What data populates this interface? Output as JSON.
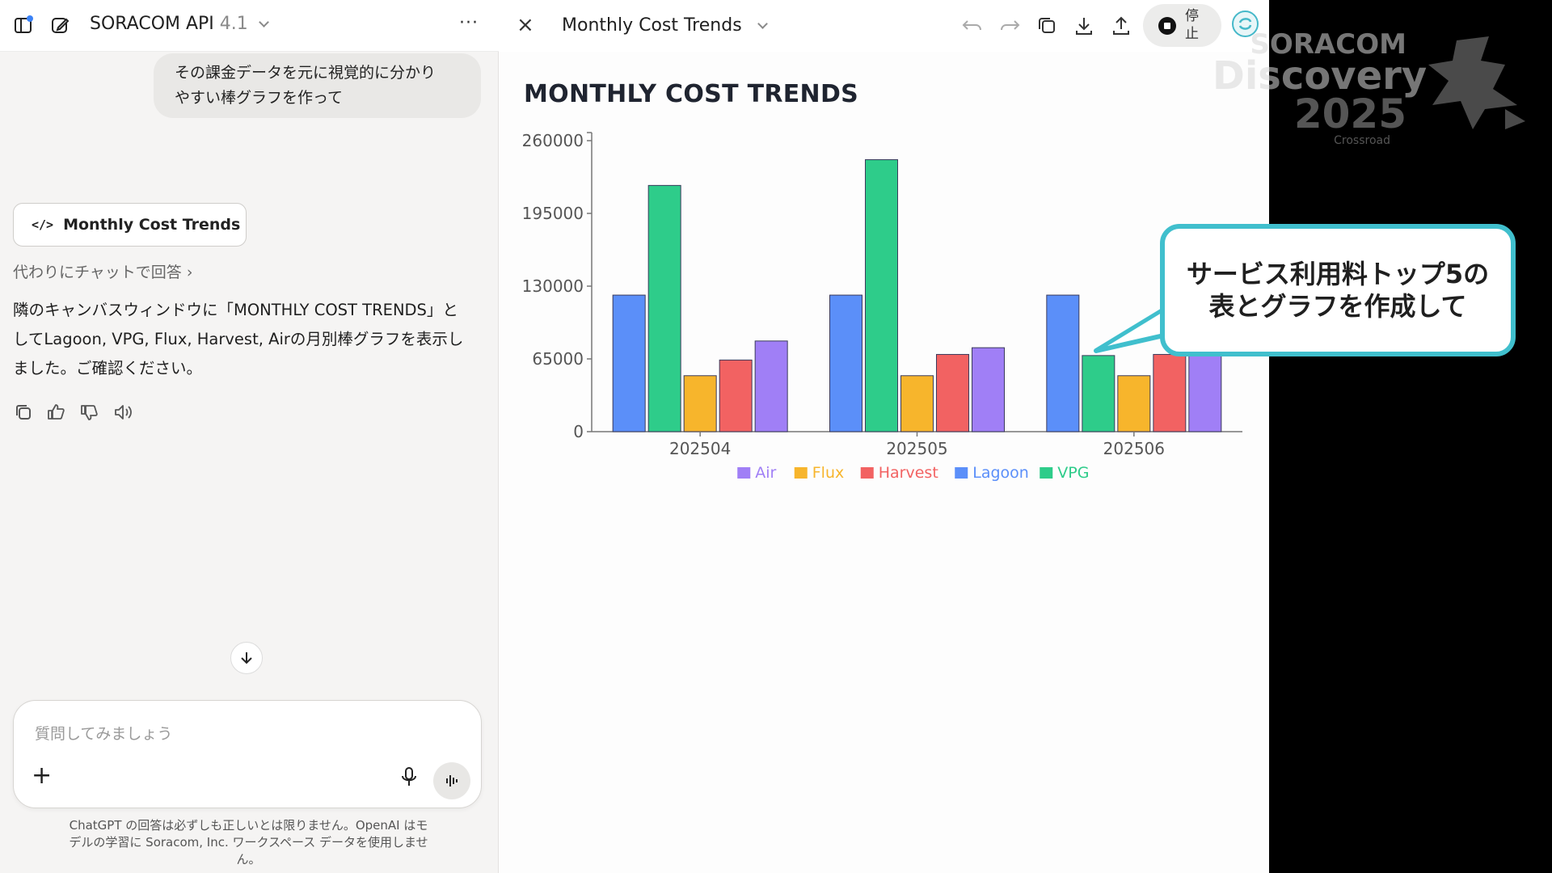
{
  "chat": {
    "model_name": "SORACOM API",
    "model_version": "4.1",
    "more_label": "···",
    "user_message_line1": "その課金データを元に視覚的に分かり",
    "user_message_line2": "やすい棒グラフを作って",
    "artifact_chip_glyph": "</>",
    "artifact_chip_label": "Monthly Cost Trends",
    "chat_instead_label": "代わりにチャットで回答 ›",
    "assistant_line1": "隣のキャンバスウィンドウに「MONTHLY COST TRENDS」と",
    "assistant_line2": "してLagoon, VPG, Flux, Harvest, Airの月別棒グラフを表示し",
    "assistant_line3": "ました。ご確認ください。",
    "composer_placeholder": "質問してみましょう",
    "composer_plus": "+",
    "disclaimer_line1": "ChatGPT の回答は必ずしも正しいとは限りません。OpenAI はモ",
    "disclaimer_line2": "デルの学習に Soracom, Inc. ワークスペース データを使用しませ",
    "disclaimer_line3": "ん。"
  },
  "canvas": {
    "title": "Monthly Cost Trends",
    "close_glyph": "×",
    "stop_label": "停止"
  },
  "chart_data": {
    "type": "bar",
    "title": "MONTHLY COST TRENDS",
    "categories": [
      "202504",
      "202505",
      "202506"
    ],
    "series": [
      {
        "name": "Lagoon",
        "color": "#5b8ff9",
        "values": [
          122000,
          122000,
          122000
        ]
      },
      {
        "name": "VPG",
        "color": "#2ecc8a",
        "values": [
          220000,
          243000,
          68000
        ]
      },
      {
        "name": "Flux",
        "color": "#f7b52c",
        "values": [
          50000,
          50000,
          50000
        ]
      },
      {
        "name": "Harvest",
        "color": "#f26262",
        "values": [
          64000,
          69000,
          69000
        ]
      },
      {
        "name": "Air",
        "color": "#a07ff6",
        "values": [
          81000,
          75000,
          68000
        ]
      }
    ],
    "legend_order": [
      "Air",
      "Flux",
      "Harvest",
      "Lagoon",
      "VPG"
    ],
    "yticks": [
      0,
      65000,
      130000,
      195000,
      260000
    ],
    "ylim": [
      0,
      260000
    ],
    "legend_position": "bottom",
    "grid": false
  },
  "overlay": {
    "brand_line1": "SORACOM",
    "brand_line2": "Discovery",
    "brand_line3": "2025",
    "brand_line4": "Crossroad",
    "callout_line1": "サービス利用料トップ5の",
    "callout_line2": "表とグラフを作成して"
  }
}
